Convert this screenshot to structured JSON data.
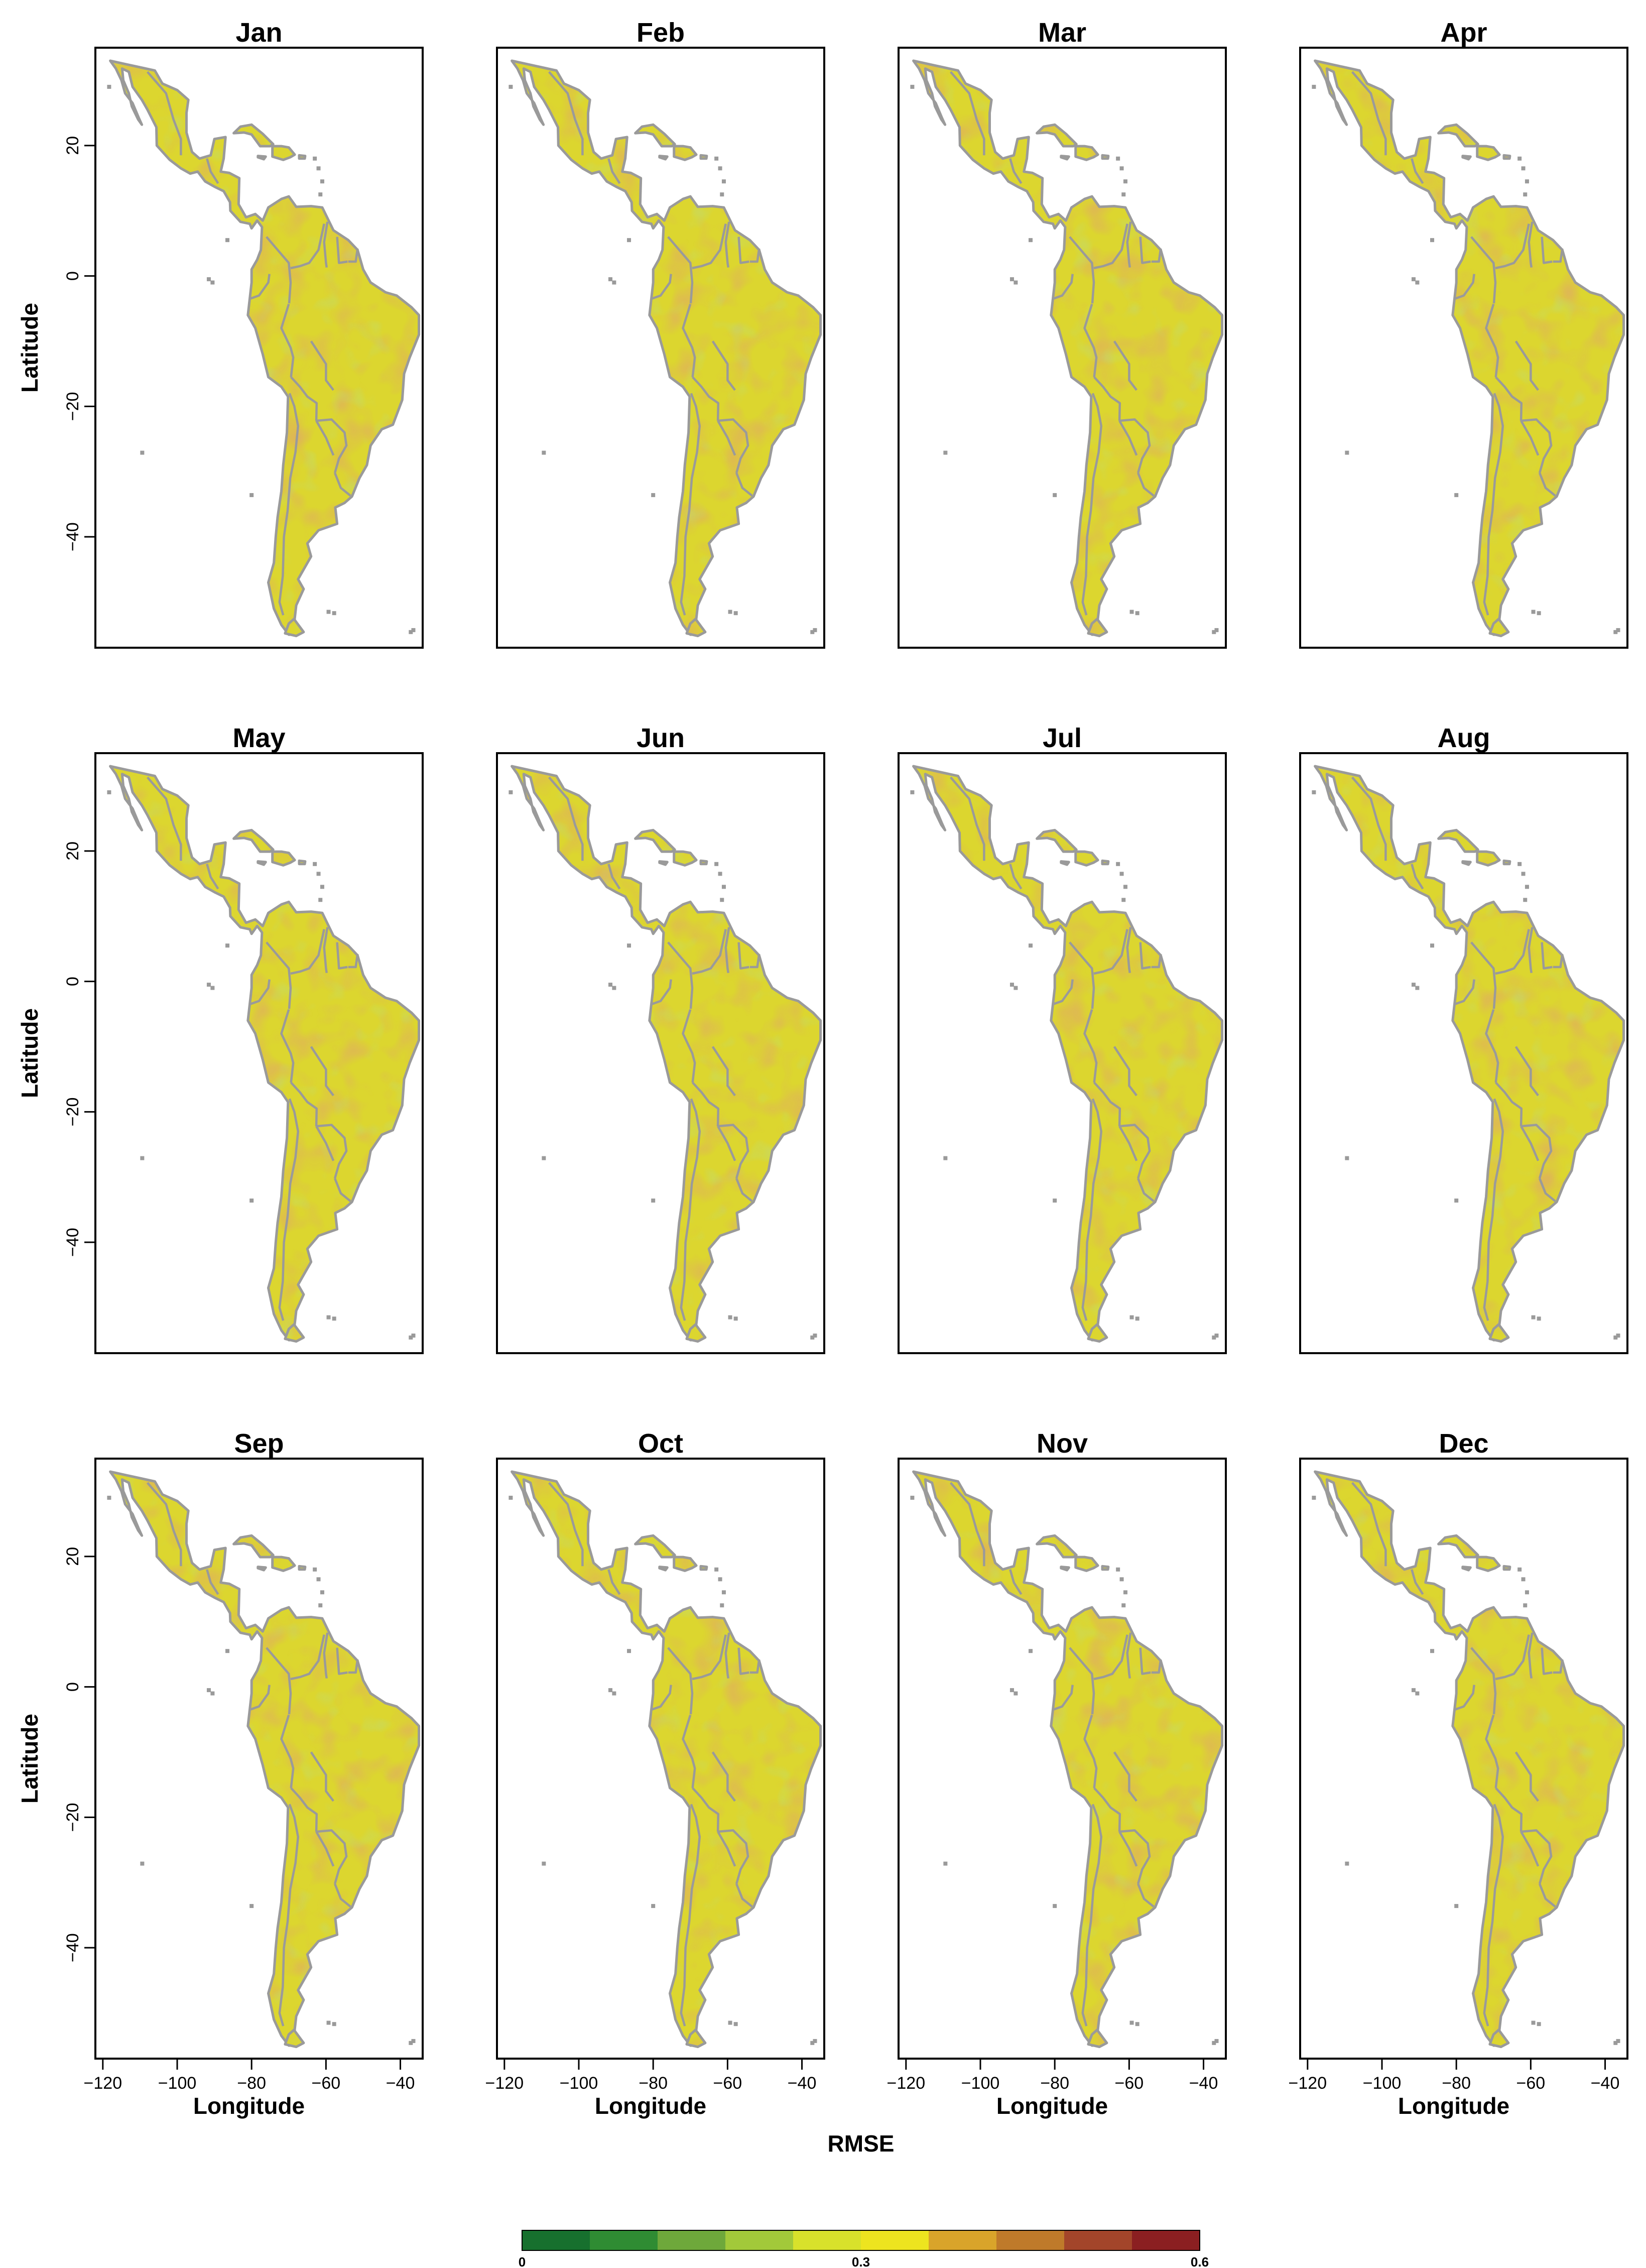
{
  "figure": {
    "rows": 3,
    "cols": 4,
    "x_axis_label": "Longitude",
    "y_axis_label": "Latitude",
    "colorbar_title": "RMSE"
  },
  "chart_data": {
    "type": "heatmap",
    "variable": "RMSE",
    "panels": [
      "Jan",
      "Feb",
      "Mar",
      "Apr",
      "May",
      "Jun",
      "Jul",
      "Aug",
      "Sep",
      "Oct",
      "Nov",
      "Dec"
    ],
    "xlim": [
      -122,
      -34
    ],
    "ylim": [
      -57,
      35
    ],
    "x_ticks": [
      -120,
      -100,
      -80,
      -60,
      -40
    ],
    "x_tick_labels": [
      "−120",
      "−100",
      "−80",
      "−60",
      "−40"
    ],
    "y_ticks": [
      20,
      0,
      -20,
      -40
    ],
    "y_tick_labels": [
      "20",
      "0",
      "−20",
      "−40"
    ],
    "colorbar": {
      "min": 0,
      "max": 0.6,
      "tick_values": [
        0,
        0.3,
        0.6
      ],
      "tick_labels": [
        "0",
        "0.3",
        "0.6"
      ],
      "colors": [
        "#17702e",
        "#2f8c33",
        "#6ea83b",
        "#a2c93a",
        "#d8e12b",
        "#ede41f",
        "#d9a42a",
        "#bf7a2a",
        "#a3452a",
        "#8b1f21"
      ]
    },
    "colors": {
      "land_default": "#dcd62f",
      "boundary": "#9a9a9a",
      "frame": "#000000"
    }
  }
}
